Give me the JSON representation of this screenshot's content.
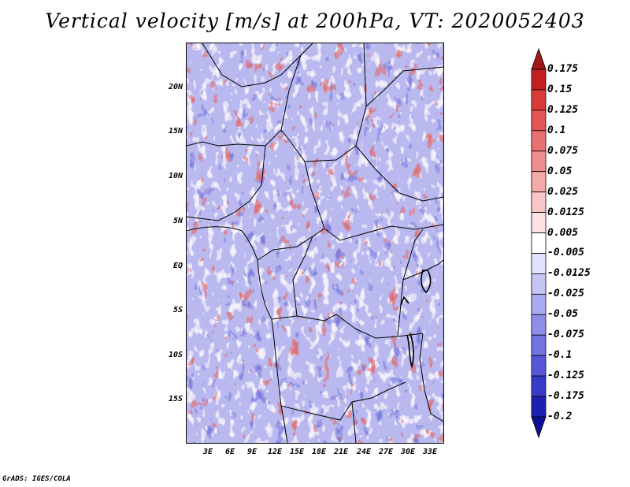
{
  "title": "Vertical velocity [m/s] at 200hPa, VT: 2020052403",
  "lat_labels": [
    "20N",
    "15N",
    "10N",
    "5N",
    "EQ",
    "5S",
    "10S",
    "15S"
  ],
  "lon_labels": [
    "3E",
    "6E",
    "9E",
    "12E",
    "15E",
    "18E",
    "21E",
    "24E",
    "27E",
    "30E",
    "33E"
  ],
  "colorbar": {
    "levels": [
      "0.175",
      "0.15",
      "0.125",
      "0.1",
      "0.075",
      "0.05",
      "0.025",
      "0.0125",
      "0.005",
      "-0.005",
      "-0.0125",
      "-0.025",
      "-0.05",
      "-0.075",
      "-0.1",
      "-0.125",
      "-0.175",
      "-0.2"
    ],
    "colors": [
      "#a01818",
      "#c02020",
      "#d83a3a",
      "#e25656",
      "#e87272",
      "#ee8e8e",
      "#f3aaaa",
      "#f8c6c6",
      "#fce2e2",
      "#ffffff",
      "#e2e2fc",
      "#c6c6f5",
      "#aaaaee",
      "#8e8ee8",
      "#7272e2",
      "#5656d8",
      "#3a3ac8",
      "#2020b0",
      "#101096"
    ]
  },
  "footer": "GrADS: IGES/COLA"
}
